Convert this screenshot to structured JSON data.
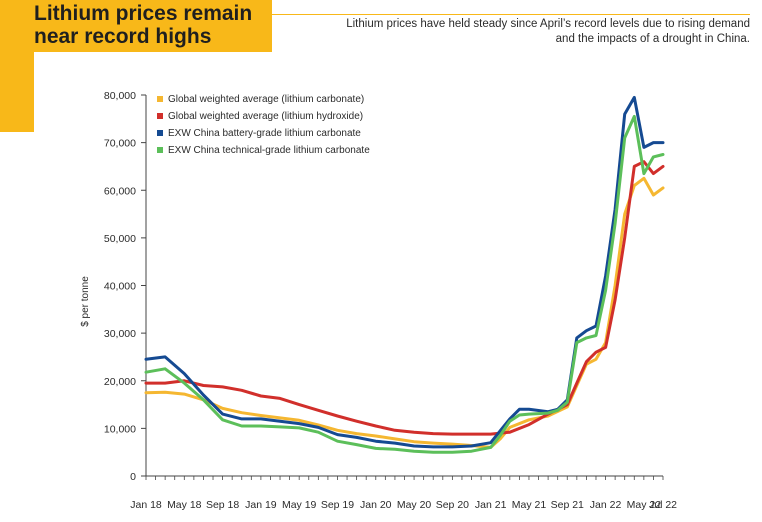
{
  "header": {
    "title_line1": "Lithium prices remain",
    "title_line2": "near record highs",
    "subtitle_line1": "Lithium prices have held steady since April’s record levels due to rising demand",
    "subtitle_line2": "and the impacts of a drought in China."
  },
  "colors": {
    "accent": "#f8b819",
    "global_carbonate": "#f5b731",
    "global_hydroxide": "#d12f2b",
    "battery_grade": "#154a92",
    "technical_grade": "#5cbf5a"
  },
  "chart_data": {
    "type": "line",
    "ylabel": "$ per tonne",
    "xlabel": "",
    "ylim": [
      0,
      80000
    ],
    "yticks": [
      0,
      10000,
      20000,
      30000,
      40000,
      50000,
      60000,
      70000,
      80000
    ],
    "ytick_labels": [
      "0",
      "10,000",
      "20,000",
      "30,000",
      "40,000",
      "50,000",
      "60,000",
      "70,000",
      "80,000"
    ],
    "x_start": "Jan 18",
    "x_end": "Jul 22",
    "xticks": [
      "Jan 18",
      "May 18",
      "Sep 18",
      "Jan 19",
      "May 19",
      "Sep 19",
      "Jan 20",
      "May 20",
      "Sep 20",
      "Jan 21",
      "May 21",
      "Sep 21",
      "Jan 22",
      "May 22",
      "Jul 22"
    ],
    "grid": false,
    "legend_position": "top-left",
    "series": [
      {
        "name": "Global weighted average (lithium carbonate)",
        "color": "#f5b731",
        "points": [
          [
            "Jan 18",
            17500
          ],
          [
            "Mar 18",
            17600
          ],
          [
            "May 18",
            17200
          ],
          [
            "Jul 18",
            16000
          ],
          [
            "Sep 18",
            14200
          ],
          [
            "Nov 18",
            13300
          ],
          [
            "Jan 19",
            12700
          ],
          [
            "Mar 19",
            12200
          ],
          [
            "May 19",
            11700
          ],
          [
            "Jul 19",
            10700
          ],
          [
            "Sep 19",
            9600
          ],
          [
            "Nov 19",
            8900
          ],
          [
            "Jan 20",
            8400
          ],
          [
            "Mar 20",
            7800
          ],
          [
            "May 20",
            7200
          ],
          [
            "Jul 20",
            6900
          ],
          [
            "Sep 20",
            6700
          ],
          [
            "Nov 20",
            6400
          ],
          [
            "Jan 21",
            6000
          ],
          [
            "Feb 21",
            7800
          ],
          [
            "Mar 21",
            10200
          ],
          [
            "May 21",
            11800
          ],
          [
            "Jul 21",
            12600
          ],
          [
            "Sep 21",
            14500
          ],
          [
            "Oct 21",
            19000
          ],
          [
            "Nov 21",
            23500
          ],
          [
            "Dec 21",
            24500
          ],
          [
            "Jan 22",
            28000
          ],
          [
            "Feb 22",
            40000
          ],
          [
            "Mar 22",
            55000
          ],
          [
            "Apr 22",
            61000
          ],
          [
            "May 22",
            62500
          ],
          [
            "Jun 22",
            59000
          ],
          [
            "Jul 22",
            60500
          ]
        ]
      },
      {
        "name": "Global weighted average (lithium hydroxide)",
        "color": "#d12f2b",
        "points": [
          [
            "Jan 18",
            19500
          ],
          [
            "Mar 18",
            19500
          ],
          [
            "May 18",
            20000
          ],
          [
            "Jul 18",
            19000
          ],
          [
            "Sep 18",
            18700
          ],
          [
            "Nov 18",
            18000
          ],
          [
            "Jan 19",
            16800
          ],
          [
            "Mar 19",
            16300
          ],
          [
            "May 19",
            15000
          ],
          [
            "Jul 19",
            13800
          ],
          [
            "Sep 19",
            12600
          ],
          [
            "Nov 19",
            11500
          ],
          [
            "Jan 20",
            10500
          ],
          [
            "Mar 20",
            9600
          ],
          [
            "May 20",
            9200
          ],
          [
            "Jul 20",
            8900
          ],
          [
            "Sep 20",
            8800
          ],
          [
            "Nov 20",
            8800
          ],
          [
            "Jan 21",
            8800
          ],
          [
            "Mar 21",
            9200
          ],
          [
            "May 21",
            10800
          ],
          [
            "Jul 21",
            13000
          ],
          [
            "Sep 21",
            15000
          ],
          [
            "Oct 21",
            19500
          ],
          [
            "Nov 21",
            24000
          ],
          [
            "Dec 21",
            26000
          ],
          [
            "Jan 22",
            27000
          ],
          [
            "Feb 22",
            37000
          ],
          [
            "Mar 22",
            50000
          ],
          [
            "Apr 22",
            65000
          ],
          [
            "May 22",
            66000
          ],
          [
            "Jun 22",
            63500
          ],
          [
            "Jul 22",
            65000
          ]
        ]
      },
      {
        "name": "EXW China battery-grade lithium carbonate",
        "color": "#154a92",
        "points": [
          [
            "Jan 18",
            24500
          ],
          [
            "Mar 18",
            25000
          ],
          [
            "May 18",
            21500
          ],
          [
            "Jul 18",
            17000
          ],
          [
            "Sep 18",
            13000
          ],
          [
            "Nov 18",
            12000
          ],
          [
            "Jan 19",
            12000
          ],
          [
            "Mar 19",
            11500
          ],
          [
            "May 19",
            11000
          ],
          [
            "Jul 19",
            10200
          ],
          [
            "Sep 19",
            8700
          ],
          [
            "Nov 19",
            8100
          ],
          [
            "Jan 20",
            7300
          ],
          [
            "Mar 20",
            6900
          ],
          [
            "May 20",
            6300
          ],
          [
            "Jul 20",
            6100
          ],
          [
            "Sep 20",
            6100
          ],
          [
            "Nov 20",
            6300
          ],
          [
            "Jan 21",
            7000
          ],
          [
            "Feb 21",
            9500
          ],
          [
            "Mar 21",
            12000
          ],
          [
            "Apr 21",
            14000
          ],
          [
            "May 21",
            14000
          ],
          [
            "Jul 21",
            13500
          ],
          [
            "Aug 21",
            14000
          ],
          [
            "Sep 21",
            16000
          ],
          [
            "Oct 21",
            29000
          ],
          [
            "Nov 21",
            30500
          ],
          [
            "Dec 21",
            31500
          ],
          [
            "Jan 22",
            42000
          ],
          [
            "Feb 22",
            56000
          ],
          [
            "Mar 22",
            76000
          ],
          [
            "Apr 22",
            79500
          ],
          [
            "May 22",
            69000
          ],
          [
            "Jun 22",
            70000
          ],
          [
            "Jul 22",
            70000
          ]
        ]
      },
      {
        "name": "EXW China technical-grade lithium carbonate",
        "color": "#5cbf5a",
        "points": [
          [
            "Jan 18",
            21800
          ],
          [
            "Mar 18",
            22500
          ],
          [
            "May 18",
            19500
          ],
          [
            "Jul 18",
            16000
          ],
          [
            "Sep 18",
            11800
          ],
          [
            "Nov 18",
            10500
          ],
          [
            "Jan 19",
            10500
          ],
          [
            "Mar 19",
            10300
          ],
          [
            "May 19",
            10100
          ],
          [
            "Jul 19",
            9200
          ],
          [
            "Sep 19",
            7300
          ],
          [
            "Nov 19",
            6600
          ],
          [
            "Jan 20",
            5800
          ],
          [
            "Mar 20",
            5600
          ],
          [
            "May 20",
            5200
          ],
          [
            "Jul 20",
            5000
          ],
          [
            "Sep 20",
            5000
          ],
          [
            "Nov 20",
            5200
          ],
          [
            "Jan 21",
            6000
          ],
          [
            "Feb 21",
            8500
          ],
          [
            "Mar 21",
            11500
          ],
          [
            "Apr 21",
            12800
          ],
          [
            "May 21",
            13000
          ],
          [
            "Jul 21",
            13200
          ],
          [
            "Aug 21",
            13800
          ],
          [
            "Sep 21",
            15500
          ],
          [
            "Oct 21",
            28000
          ],
          [
            "Nov 21",
            29000
          ],
          [
            "Dec 21",
            29500
          ],
          [
            "Jan 22",
            39000
          ],
          [
            "Feb 22",
            53000
          ],
          [
            "Mar 22",
            71000
          ],
          [
            "Apr 22",
            75500
          ],
          [
            "May 22",
            63500
          ],
          [
            "Jun 22",
            67000
          ],
          [
            "Jul 22",
            67500
          ]
        ]
      }
    ]
  }
}
